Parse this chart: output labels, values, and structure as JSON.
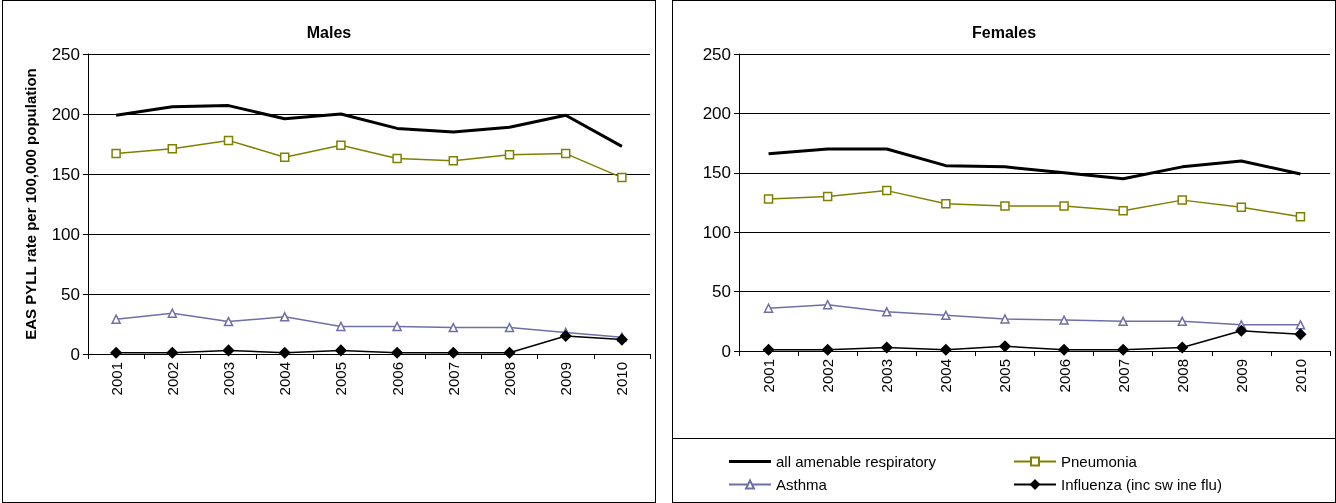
{
  "chart_data": [
    {
      "type": "line",
      "title": "Males",
      "ylabel": "EAS PYLL rate per 100,000 population",
      "categories": [
        "2001",
        "2002",
        "2003",
        "2004",
        "2005",
        "2006",
        "2007",
        "2008",
        "2009",
        "2010"
      ],
      "ylim": [
        0,
        250
      ],
      "yticks": [
        0,
        50,
        100,
        150,
        200,
        250
      ],
      "grid": "y",
      "legend": false,
      "series": [
        {
          "color": "#000000",
          "marker": "none",
          "values": [
            199,
            206,
            207,
            196,
            200,
            188,
            185,
            189,
            199,
            173
          ]
        },
        {
          "color": "#808000",
          "marker": "square",
          "values": [
            167,
            171,
            178,
            164,
            174,
            163,
            161,
            166,
            167,
            147
          ]
        },
        {
          "color": "#6f6fa8",
          "marker": "triangle",
          "values": [
            29,
            34,
            27,
            31,
            23,
            23,
            22,
            22,
            18,
            14
          ]
        },
        {
          "color": "#000000",
          "marker": "diamond",
          "values": [
            1,
            1,
            3,
            1,
            3,
            1,
            1,
            1,
            15,
            12
          ]
        }
      ]
    },
    {
      "type": "line",
      "title": "Females",
      "categories": [
        "2001",
        "2002",
        "2003",
        "2004",
        "2005",
        "2006",
        "2007",
        "2008",
        "2009",
        "2010"
      ],
      "ylim": [
        0,
        250
      ],
      "yticks": [
        0,
        50,
        100,
        150,
        200,
        250
      ],
      "grid": "y",
      "legend": "bottom",
      "series": [
        {
          "name": "all amenable respiratory",
          "color": "#000000",
          "marker": "none",
          "values": [
            166,
            170,
            170,
            156,
            155,
            150,
            145,
            155,
            160,
            149
          ]
        },
        {
          "name": "Pneumonia",
          "color": "#808000",
          "marker": "square",
          "values": [
            128,
            130,
            135,
            124,
            122,
            122,
            118,
            127,
            121,
            113
          ]
        },
        {
          "name": "Asthma",
          "color": "#6f6fa8",
          "marker": "triangle",
          "values": [
            36,
            39,
            33,
            30,
            27,
            26,
            25,
            25,
            22,
            22
          ]
        },
        {
          "name": "Influenza (inc sw ine flu)",
          "color": "#000000",
          "marker": "diamond",
          "values": [
            1,
            1,
            3,
            1,
            4,
            1,
            1,
            3,
            17,
            14
          ]
        }
      ]
    }
  ]
}
